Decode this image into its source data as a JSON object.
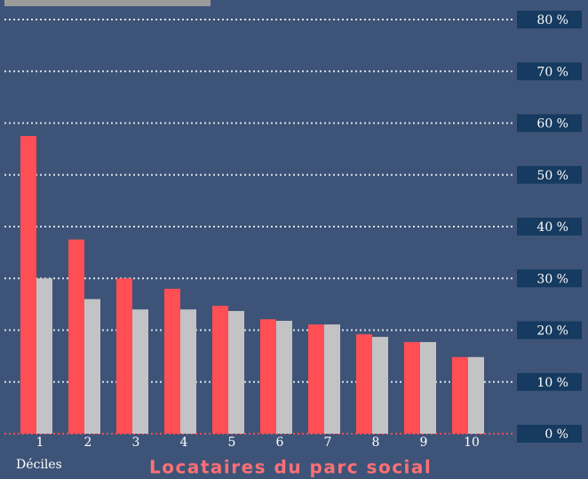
{
  "chart_data": {
    "type": "bar",
    "xlabel": "Déciles",
    "caption": "Locataires du parc social",
    "categories": [
      "1",
      "2",
      "3",
      "4",
      "5",
      "6",
      "7",
      "8",
      "9",
      "10"
    ],
    "series": [
      {
        "color": "#ff4f55",
        "values": [
          57.5,
          37.5,
          30,
          28,
          24.7,
          22.1,
          21.1,
          19.2,
          17.7,
          14.8
        ]
      },
      {
        "color": "#c3c3c6",
        "values": [
          30,
          26,
          24,
          24,
          23.7,
          21.8,
          21.1,
          18.7,
          17.7,
          14.8
        ]
      }
    ],
    "ylim": [
      0,
      80
    ],
    "yticks": [
      {
        "value": 0,
        "label": "0 %"
      },
      {
        "value": 10,
        "label": "10 %"
      },
      {
        "value": 20,
        "label": "20 %"
      },
      {
        "value": 30,
        "label": "30 %"
      },
      {
        "value": 40,
        "label": "40 %"
      },
      {
        "value": 50,
        "label": "50 %"
      },
      {
        "value": 60,
        "label": "60 %"
      },
      {
        "value": 70,
        "label": "70 %"
      },
      {
        "value": 80,
        "label": "80 %"
      }
    ],
    "grid": true
  }
}
